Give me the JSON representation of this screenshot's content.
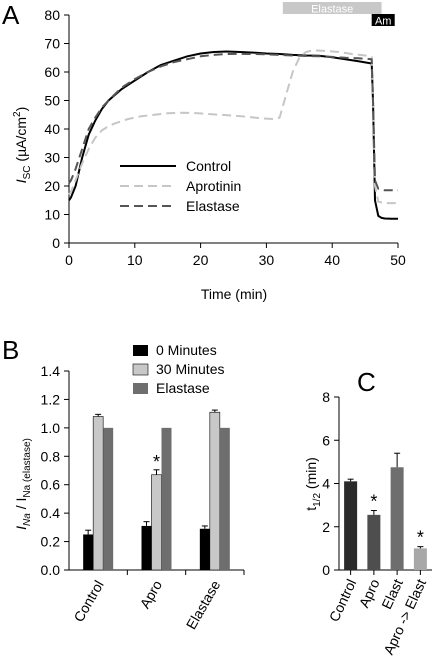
{
  "chart_data": [
    {
      "type": "line",
      "panel": "A",
      "xlabel": "Time (min)",
      "ylabel_main": "I",
      "ylabel_sub": "SC",
      "ylabel_unit": " (µA/cm",
      "ylabel_sup": "2",
      "ylabel_end": ")",
      "xlim": [
        0,
        50
      ],
      "ylim": [
        0,
        80
      ],
      "xticks": [
        0,
        10,
        20,
        30,
        40,
        50
      ],
      "yticks": [
        0,
        10,
        20,
        30,
        40,
        50,
        60,
        70,
        80
      ],
      "treatments": [
        {
          "label": "Elastase",
          "x_start": 32.5,
          "x_end": 47.5,
          "color": "#c8c8c8",
          "text_color": "#ffffff"
        },
        {
          "label": "Am",
          "x_start": 46,
          "x_end": 49.5,
          "color": "#000000",
          "text_color": "#ffffff"
        }
      ],
      "legend_position": "lower-left",
      "series": [
        {
          "name": "Control",
          "color": "#000000",
          "dash": "",
          "width": 2,
          "x": [
            0,
            0.3,
            1,
            2,
            3,
            4,
            5,
            6,
            8,
            10,
            12,
            14,
            16,
            18,
            20,
            22,
            24,
            26,
            28,
            30,
            32,
            34,
            36,
            38,
            40,
            42,
            44,
            46,
            46.2,
            46.5,
            47,
            47.5,
            48,
            49,
            50
          ],
          "y": [
            15,
            16,
            20,
            30,
            38,
            43,
            47,
            50,
            54,
            57,
            60,
            62.5,
            64,
            65.5,
            66.5,
            67,
            67.2,
            67,
            66.8,
            66.5,
            66.3,
            66,
            65.8,
            65.7,
            65.2,
            64.5,
            63.8,
            63,
            50,
            15,
            9.5,
            8.8,
            8.6,
            8.5,
            8.5
          ]
        },
        {
          "name": "Aprotinin",
          "color": "#c6c6c6",
          "dash": "9,5",
          "width": 2,
          "x": [
            0,
            0.3,
            1,
            2,
            3,
            4,
            5,
            6,
            7,
            9,
            11,
            13,
            15,
            17,
            19,
            21,
            23,
            25,
            27,
            29,
            31,
            32,
            33,
            34,
            35,
            36,
            37,
            39,
            41,
            43,
            45,
            46,
            46.2,
            46.5,
            47,
            48,
            50
          ],
          "y": [
            17,
            18,
            22,
            28,
            33,
            37,
            39.5,
            41,
            42,
            43.5,
            44.5,
            45,
            45.5,
            45.7,
            45.6,
            45.3,
            45,
            44.7,
            44.3,
            43.8,
            43.5,
            44,
            52,
            60,
            65,
            67,
            67.6,
            67.4,
            67,
            66.3,
            65.8,
            65.3,
            50,
            20,
            14.5,
            14,
            14
          ]
        },
        {
          "name": "Elastase",
          "color": "#555555",
          "dash": "9,5",
          "width": 2,
          "x": [
            0,
            0.3,
            1,
            2,
            3,
            4,
            5,
            6,
            8,
            10,
            12,
            14,
            16,
            18,
            20,
            22,
            24,
            26,
            28,
            30,
            32,
            34,
            36,
            38,
            40,
            42,
            44,
            46,
            46.2,
            46.5,
            47,
            48,
            50
          ],
          "y": [
            21,
            22,
            26,
            33,
            40,
            44,
            47.5,
            50,
            54.5,
            57.5,
            60,
            62,
            63.5,
            64.5,
            65.5,
            66,
            66.3,
            66.4,
            66.3,
            66.2,
            66,
            65.8,
            65.6,
            65.5,
            65.3,
            65,
            64.8,
            64.5,
            50,
            22,
            19,
            18.5,
            18.5
          ]
        }
      ]
    },
    {
      "type": "bar",
      "panel": "B",
      "ylabel_main": "I",
      "ylabel_sub1": "Na",
      "ylabel_mid": " / I",
      "ylabel_sub2": "Na (elastase)",
      "ylim": [
        0,
        1.4
      ],
      "yticks": [
        "0.0",
        "0.2",
        "0.4",
        "0.6",
        "0.8",
        "1.0",
        "1.2",
        "1.4"
      ],
      "categories": [
        "Control",
        "Apro",
        "Elastase"
      ],
      "legend_position": "top",
      "series": [
        {
          "name": "0 Minutes",
          "color": "#000000",
          "values": [
            0.25,
            0.31,
            0.29
          ],
          "errors": [
            0.03,
            0.03,
            0.02
          ]
        },
        {
          "name": "30 Minutes",
          "color": "#c8c8c8",
          "values": [
            1.08,
            0.67,
            1.11
          ],
          "errors": [
            0.015,
            0.035,
            0.015
          ]
        },
        {
          "name": "Elastase",
          "color": "#6e6e6e",
          "values": [
            1.0,
            1.0,
            1.0
          ],
          "errors": [
            0,
            0,
            0
          ]
        }
      ],
      "annotations": [
        {
          "text": "*",
          "category": "Apro",
          "series": "30 Minutes"
        }
      ]
    },
    {
      "type": "bar",
      "panel": "C",
      "ylabel_main": "t",
      "ylabel_sub": "1/2",
      "ylabel_unit": " (min)",
      "ylim": [
        0,
        8
      ],
      "yticks": [
        0,
        2,
        4,
        6,
        8
      ],
      "categories": [
        "Control",
        "Apro",
        "Elast",
        "Apro -> Elast"
      ],
      "values": [
        4.1,
        2.55,
        4.75,
        1.0
      ],
      "errors": [
        0.1,
        0.2,
        0.65,
        0.08
      ],
      "colors": [
        "#2a2a2a",
        "#4e4e4e",
        "#6e6e6e",
        "#a8a8a8"
      ],
      "annotations": [
        {
          "text": "*",
          "category": "Apro"
        },
        {
          "text": "*",
          "category": "Apro -> Elast"
        }
      ]
    }
  ],
  "panel_labels": [
    "A",
    "B",
    "C"
  ]
}
